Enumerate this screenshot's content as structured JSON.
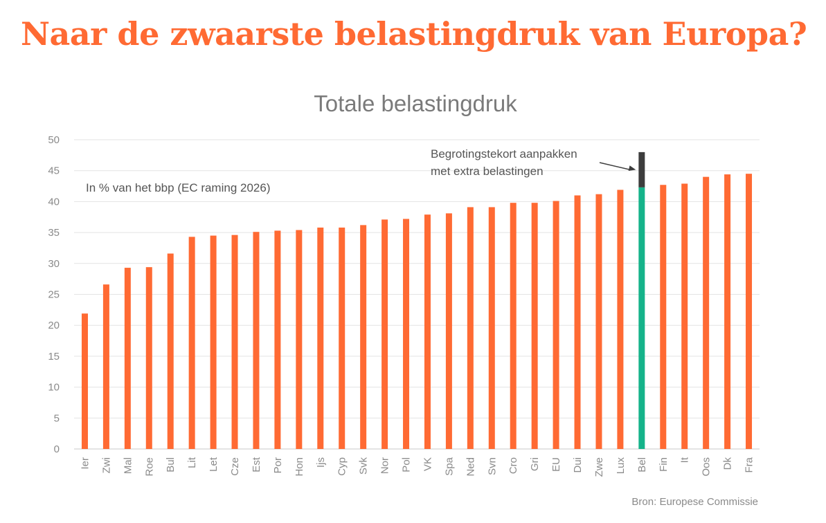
{
  "headline": "Naar de zwaarste belastingdruk van Europa?",
  "source": "Bron: Europese Commissie",
  "colors": {
    "bar": "#ff6a33",
    "highlight": "#15b38a",
    "extra": "#3d3d3d",
    "headline": "#ff6a33"
  },
  "chart_data": {
    "type": "bar",
    "title": "Totale belastingdruk",
    "subtitle": "In % van het bbp (EC raming 2026)",
    "xlabel": "",
    "ylabel": "",
    "ylim": [
      0,
      50
    ],
    "yticks": [
      0,
      5,
      10,
      15,
      20,
      25,
      30,
      35,
      40,
      45,
      50
    ],
    "grid": true,
    "categories": [
      "Ier",
      "Zwi",
      "Mal",
      "Roe",
      "Bul",
      "Lit",
      "Let",
      "Cze",
      "Est",
      "Por",
      "Hon",
      "Ijs",
      "Cyp",
      "Svk",
      "Nor",
      "Pol",
      "VK",
      "Spa",
      "Ned",
      "Svn",
      "Cro",
      "Gri",
      "EU",
      "Dui",
      "Zwe",
      "Lux",
      "Bel",
      "Fin",
      "It",
      "Oos",
      "Dk",
      "Fra"
    ],
    "values": [
      21.9,
      26.6,
      29.3,
      29.4,
      31.6,
      34.3,
      34.5,
      34.6,
      35.1,
      35.3,
      35.4,
      35.8,
      35.8,
      36.2,
      37.1,
      37.2,
      37.9,
      38.1,
      39.1,
      39.1,
      39.8,
      39.8,
      40.1,
      41.0,
      41.2,
      41.9,
      42.3,
      42.7,
      42.9,
      44.0,
      44.4,
      44.5
    ],
    "highlight_category": "Bel",
    "stacked_extra": {
      "category": "Bel",
      "base": 42.3,
      "top": 48.0
    },
    "annotation": {
      "lines": [
        "Begrotingstekort aanpakken",
        "met extra belastingen"
      ],
      "target": "Bel"
    }
  }
}
